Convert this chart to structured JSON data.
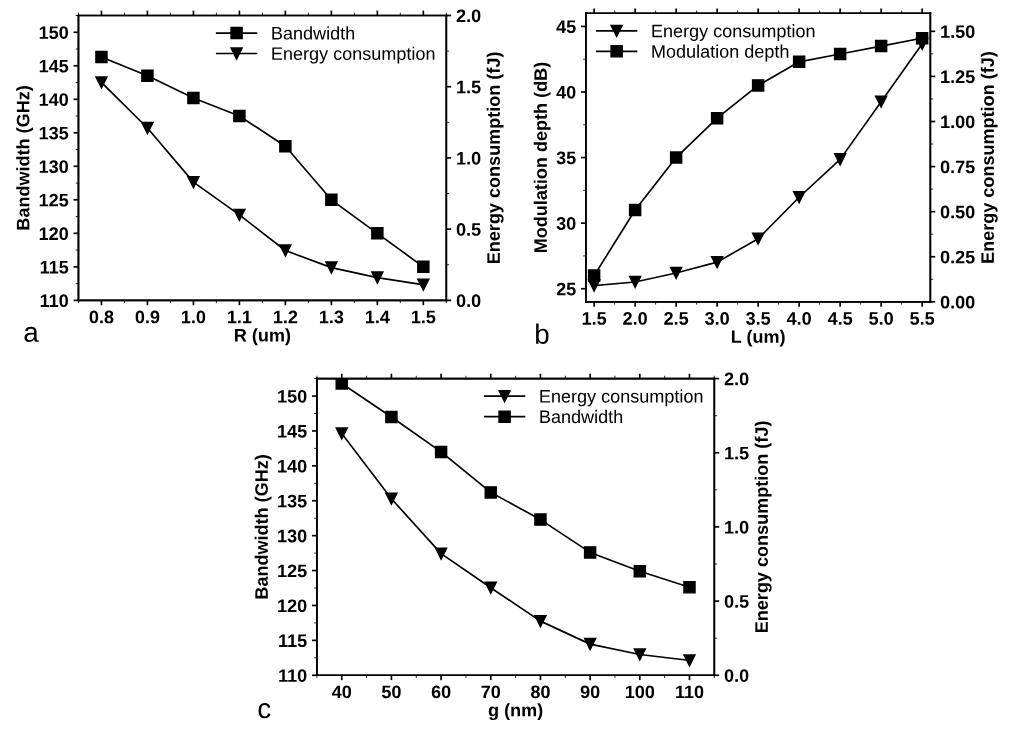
{
  "chart_data": [
    {
      "type": "line",
      "xlabel": "R (um)",
      "ylabel": "Bandwidth (GHz)",
      "y2label": "Energy consumption (fJ)",
      "annotations": [
        "a"
      ],
      "x": [
        0.8,
        0.9,
        1.0,
        1.1,
        1.2,
        1.3,
        1.4,
        1.5
      ],
      "xlim": [
        0.75,
        1.55
      ],
      "xticks": [
        {
          "value": 0.8,
          "label": "0.8"
        },
        {
          "value": 0.9,
          "label": "0.9"
        },
        {
          "value": 1.0,
          "label": "1.0"
        },
        {
          "value": 1.1,
          "label": "1.1"
        },
        {
          "value": 1.2,
          "label": "1.2"
        },
        {
          "value": 1.3,
          "label": "1.3"
        },
        {
          "value": 1.4,
          "label": "1.4"
        },
        {
          "value": 1.5,
          "label": "1.5"
        }
      ],
      "ylim": [
        110,
        152.5
      ],
      "yticks": [
        110,
        115,
        120,
        125,
        130,
        135,
        140,
        145,
        150
      ],
      "y2lim": [
        0,
        2.0
      ],
      "y2ticks": [
        {
          "value": 0,
          "label": "0.0"
        },
        {
          "value": 0.5,
          "label": "0.5"
        },
        {
          "value": 1,
          "label": "1.0"
        },
        {
          "value": 1.5,
          "label": "1.5"
        },
        {
          "value": 2,
          "label": "2.0"
        }
      ],
      "legend": "top right",
      "grid": false,
      "line_style": "solid",
      "series": [
        {
          "name": "Bandwidth",
          "color": "#000000",
          "marker": "square",
          "values": [
            146.3,
            143.5,
            140.2,
            137.5,
            133,
            125,
            120,
            115
          ]
        },
        {
          "name": "Energy consumption",
          "color": "#000000",
          "marker": "triangle",
          "axis": "y2",
          "values": [
            1.53,
            1.21,
            0.83,
            0.6,
            0.35,
            0.23,
            0.16,
            0.11
          ]
        }
      ]
    },
    {
      "type": "line",
      "xlabel": "L (um)",
      "ylabel": "Modulation depth (dB)",
      "y2label": "Energy consumption (fJ)",
      "annotations": [
        "b"
      ],
      "x": [
        1.5,
        2.0,
        2.5,
        3.0,
        3.5,
        4.0,
        4.5,
        5.0,
        5.5
      ],
      "xlim": [
        1.4,
        5.6
      ],
      "xticks": [
        {
          "value": 1.5,
          "label": "1.5"
        },
        {
          "value": 2.0,
          "label": "2.0"
        },
        {
          "value": 2.5,
          "label": "2.5"
        },
        {
          "value": 3.0,
          "label": "3.0"
        },
        {
          "value": 3.5,
          "label": "3.5"
        },
        {
          "value": 4.0,
          "label": "4.0"
        },
        {
          "value": 4.5,
          "label": "4.5"
        },
        {
          "value": 5.0,
          "label": "5.0"
        },
        {
          "value": 5.5,
          "label": "5.5"
        }
      ],
      "ylim": [
        24,
        46
      ],
      "yticks": [
        25,
        30,
        35,
        40,
        45
      ],
      "y2lim": [
        0,
        1.6
      ],
      "y2ticks": [
        {
          "value": 0,
          "label": "0.00"
        },
        {
          "value": 0.25,
          "label": "0.25"
        },
        {
          "value": 0.5,
          "label": "0.50"
        },
        {
          "value": 0.75,
          "label": "0.75"
        },
        {
          "value": 1.0,
          "label": "1.00"
        },
        {
          "value": 1.25,
          "label": "1.25"
        },
        {
          "value": 1.5,
          "label": "1.50"
        }
      ],
      "legend": "top left",
      "grid": false,
      "line_style": "solid",
      "series": [
        {
          "name": "Energy consumption",
          "color": "#000000",
          "marker": "triangle",
          "axis": "y2",
          "values": [
            0.09,
            0.11,
            0.16,
            0.22,
            0.35,
            0.58,
            0.79,
            1.11,
            1.43
          ]
        },
        {
          "name": "Modulation depth",
          "color": "#000000",
          "marker": "square",
          "values": [
            26.0,
            31.0,
            35.0,
            38.0,
            40.5,
            42.3,
            42.9,
            43.5,
            44.1
          ]
        }
      ]
    },
    {
      "type": "line",
      "xlabel": "g (nm)",
      "ylabel": "Bandwidth (GHz)",
      "y2label": "Energy consumption (fJ)",
      "annotations": [
        "c"
      ],
      "x": [
        40,
        50,
        60,
        70,
        80,
        90,
        100,
        110
      ],
      "xlim": [
        35,
        115
      ],
      "xticks": [
        40,
        50,
        60,
        70,
        80,
        90,
        100,
        110
      ],
      "ylim": [
        110,
        152.5
      ],
      "yticks": [
        110,
        115,
        120,
        125,
        130,
        135,
        140,
        145,
        150
      ],
      "y2lim": [
        0,
        2.0
      ],
      "y2ticks": [
        {
          "value": 0,
          "label": "0.0"
        },
        {
          "value": 0.5,
          "label": "0.5"
        },
        {
          "value": 1,
          "label": "1.0"
        },
        {
          "value": 1.5,
          "label": "1.5"
        },
        {
          "value": 2,
          "label": "2.0"
        }
      ],
      "legend": "top right",
      "grid": false,
      "line_style": "solid",
      "series": [
        {
          "name": "Energy consumption",
          "color": "#000000",
          "marker": "triangle",
          "axis": "y2",
          "values": [
            1.63,
            1.19,
            0.82,
            0.59,
            0.365,
            0.21,
            0.14,
            0.1
          ]
        },
        {
          "name": "Bandwidth",
          "color": "#000000",
          "marker": "square",
          "values": [
            151.8,
            147,
            142,
            136.2,
            132.3,
            127.6,
            124.9,
            122.6
          ]
        }
      ]
    }
  ]
}
